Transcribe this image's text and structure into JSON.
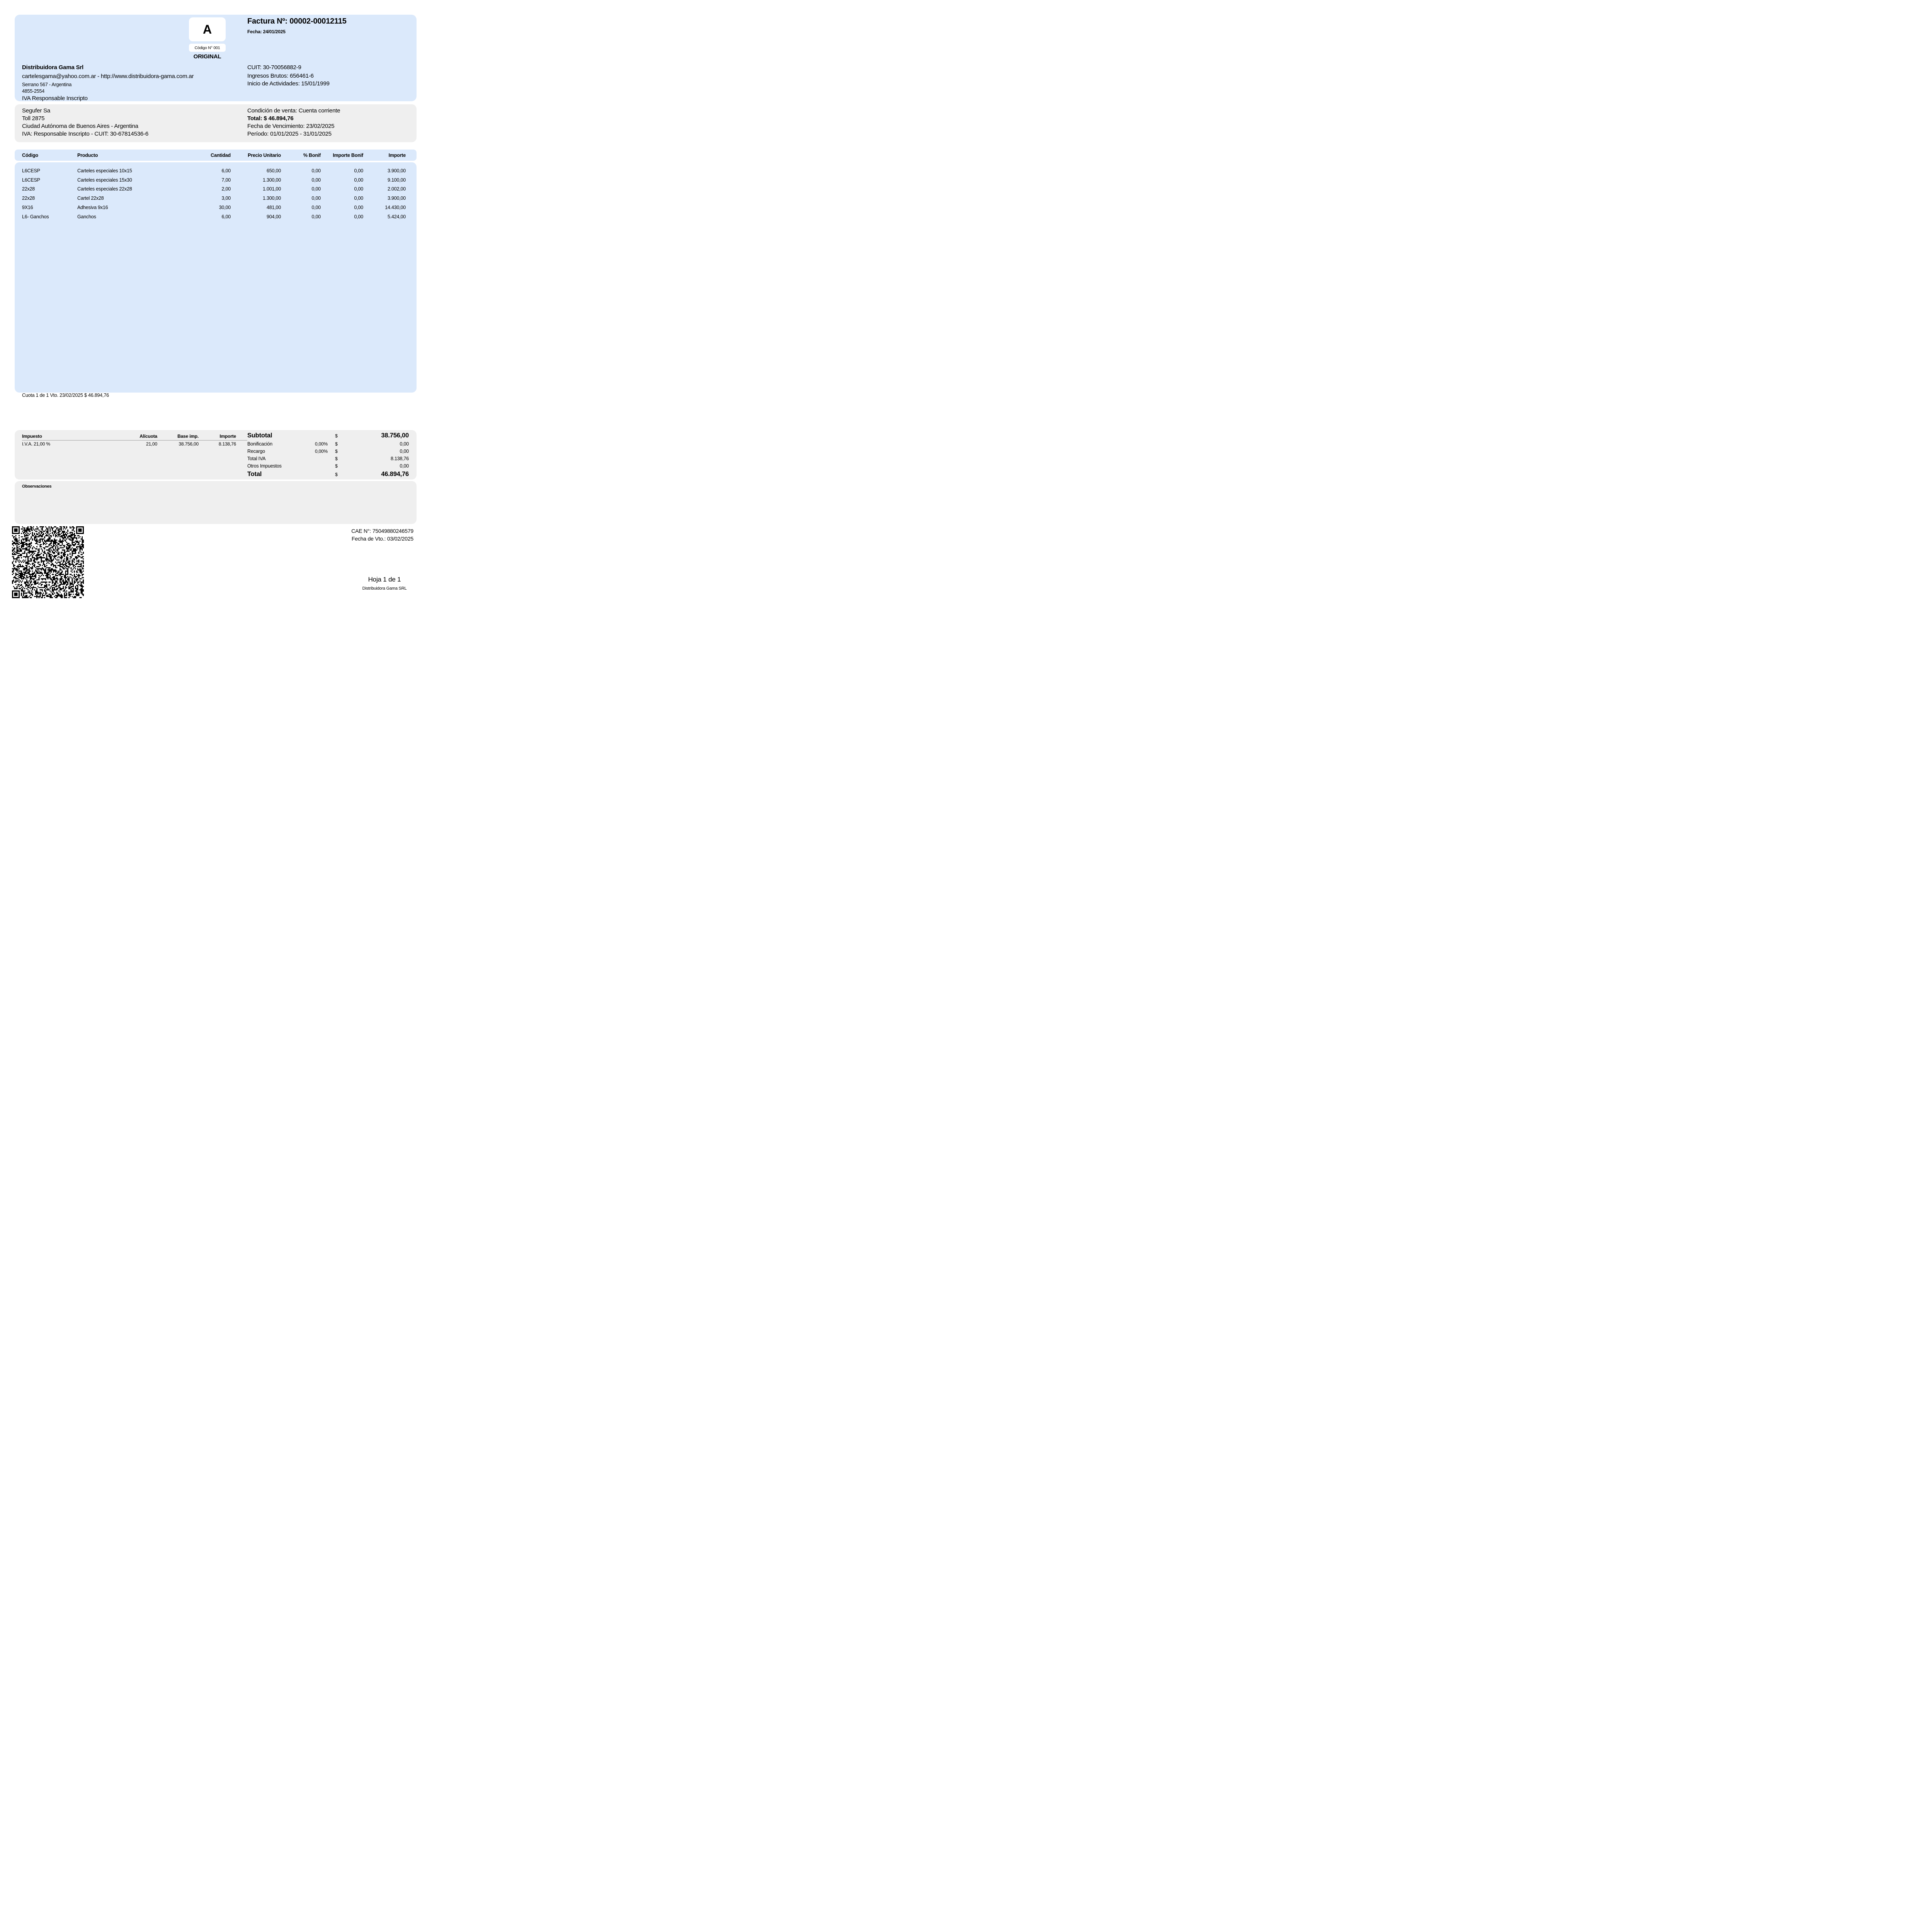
{
  "page": {
    "colors": {
      "panel_blue": "#dbe9fb",
      "panel_gray": "#efefef"
    },
    "header": {
      "letter": "A",
      "codigo": "Código N° 001",
      "copy": "ORIGINAL",
      "invoice_number": "Factura Nº: 00002-00012115",
      "date": "Fecha: 24/01/2025",
      "seller_name": "Distribuidora Gama Srl",
      "seller_contact": "cartelesgama@yahoo.com.ar - http://www.distribuidora-gama.com.ar",
      "seller_address": "Serrano 567 - Argentina",
      "seller_phone": "4855-2554",
      "seller_iva": "IVA Responsable Inscripto",
      "cuit": "CUIT: 30-70056882-9",
      "ingresos_brutos": "Ingresos Brutos: 656461-6",
      "inicio_actividades": "Inicio de Actividades: 15/01/1999"
    },
    "customer": {
      "name": "Segufer Sa",
      "address": "Toll 2875",
      "city": "Ciudad Autónoma de Buenos Aires - Argentina",
      "iva": "IVA: Responsable Inscripto - CUIT: 30-67814536-6",
      "sale_condition": "Condición de venta: Cuenta corriente",
      "total": "Total: $ 46.894,76",
      "due_date": "Fecha de Vencimiento: 23/02/2025",
      "period": "Período: 01/01/2025 - 31/01/2025"
    },
    "items": {
      "headers": [
        "Código",
        "Producto",
        "Cantidad",
        "Precio Unitario",
        "% Bonif",
        "Importe Bonif",
        "Importe"
      ],
      "rows": [
        [
          "L6CESP",
          "Carteles especiales 10x15",
          "6,00",
          "650,00",
          "0,00",
          "0,00",
          "3.900,00"
        ],
        [
          "L6CESP",
          "Carteles especiales 15x30",
          "7,00",
          "1.300,00",
          "0,00",
          "0,00",
          "9.100,00"
        ],
        [
          "22x28",
          "Carteles especiales 22x28",
          "2,00",
          "1.001,00",
          "0,00",
          "0,00",
          "2.002,00"
        ],
        [
          "22x28",
          "Cartel 22x28",
          "3,00",
          "1.300,00",
          "0,00",
          "0,00",
          "3.900,00"
        ],
        [
          "9X16",
          "Adhesiva 9x16",
          "30,00",
          "481,00",
          "0,00",
          "0,00",
          "14.430,00"
        ],
        [
          "L6- Ganchos",
          "Ganchos",
          "6,00",
          "904,00",
          "0,00",
          "0,00",
          "5.424,00"
        ]
      ]
    },
    "cuota": "Cuota 1 de 1 Vto. 23/02/2025 $ 46.894,76",
    "taxes": {
      "headers": [
        "Impuesto",
        "Alícuota",
        "Base imp.",
        "Importe"
      ],
      "rows": [
        [
          "I.V.A. 21,00 %",
          "21,00",
          "38.756,00",
          "8.138,76"
        ]
      ]
    },
    "summary": {
      "rows": [
        {
          "label": "Subtotal",
          "pct": "",
          "currency": "$",
          "amount": "38.756,00",
          "emphasis": true
        },
        {
          "label": "Bonificación",
          "pct": "0,00%",
          "currency": "$",
          "amount": "0,00",
          "emphasis": false
        },
        {
          "label": "Recargo",
          "pct": "0,00%",
          "currency": "$",
          "amount": "0,00",
          "emphasis": false
        },
        {
          "label": "Total IVA",
          "pct": "",
          "currency": "$",
          "amount": "8.138,76",
          "emphasis": false
        },
        {
          "label": "Otros Impuestos",
          "pct": "",
          "currency": "$",
          "amount": "0,00",
          "emphasis": false
        },
        {
          "label": "Total",
          "pct": "",
          "currency": "$",
          "amount": "46.894,76",
          "emphasis": true
        }
      ]
    },
    "observaciones_label": "Observaciones",
    "footer": {
      "cae": "CAE N°: 75049880246579",
      "cae_vto": "Fecha de Vto.: 03/02/2025",
      "page_label": "Hoja 1 de 1",
      "company": "Distribuidora Gama SRL"
    }
  }
}
